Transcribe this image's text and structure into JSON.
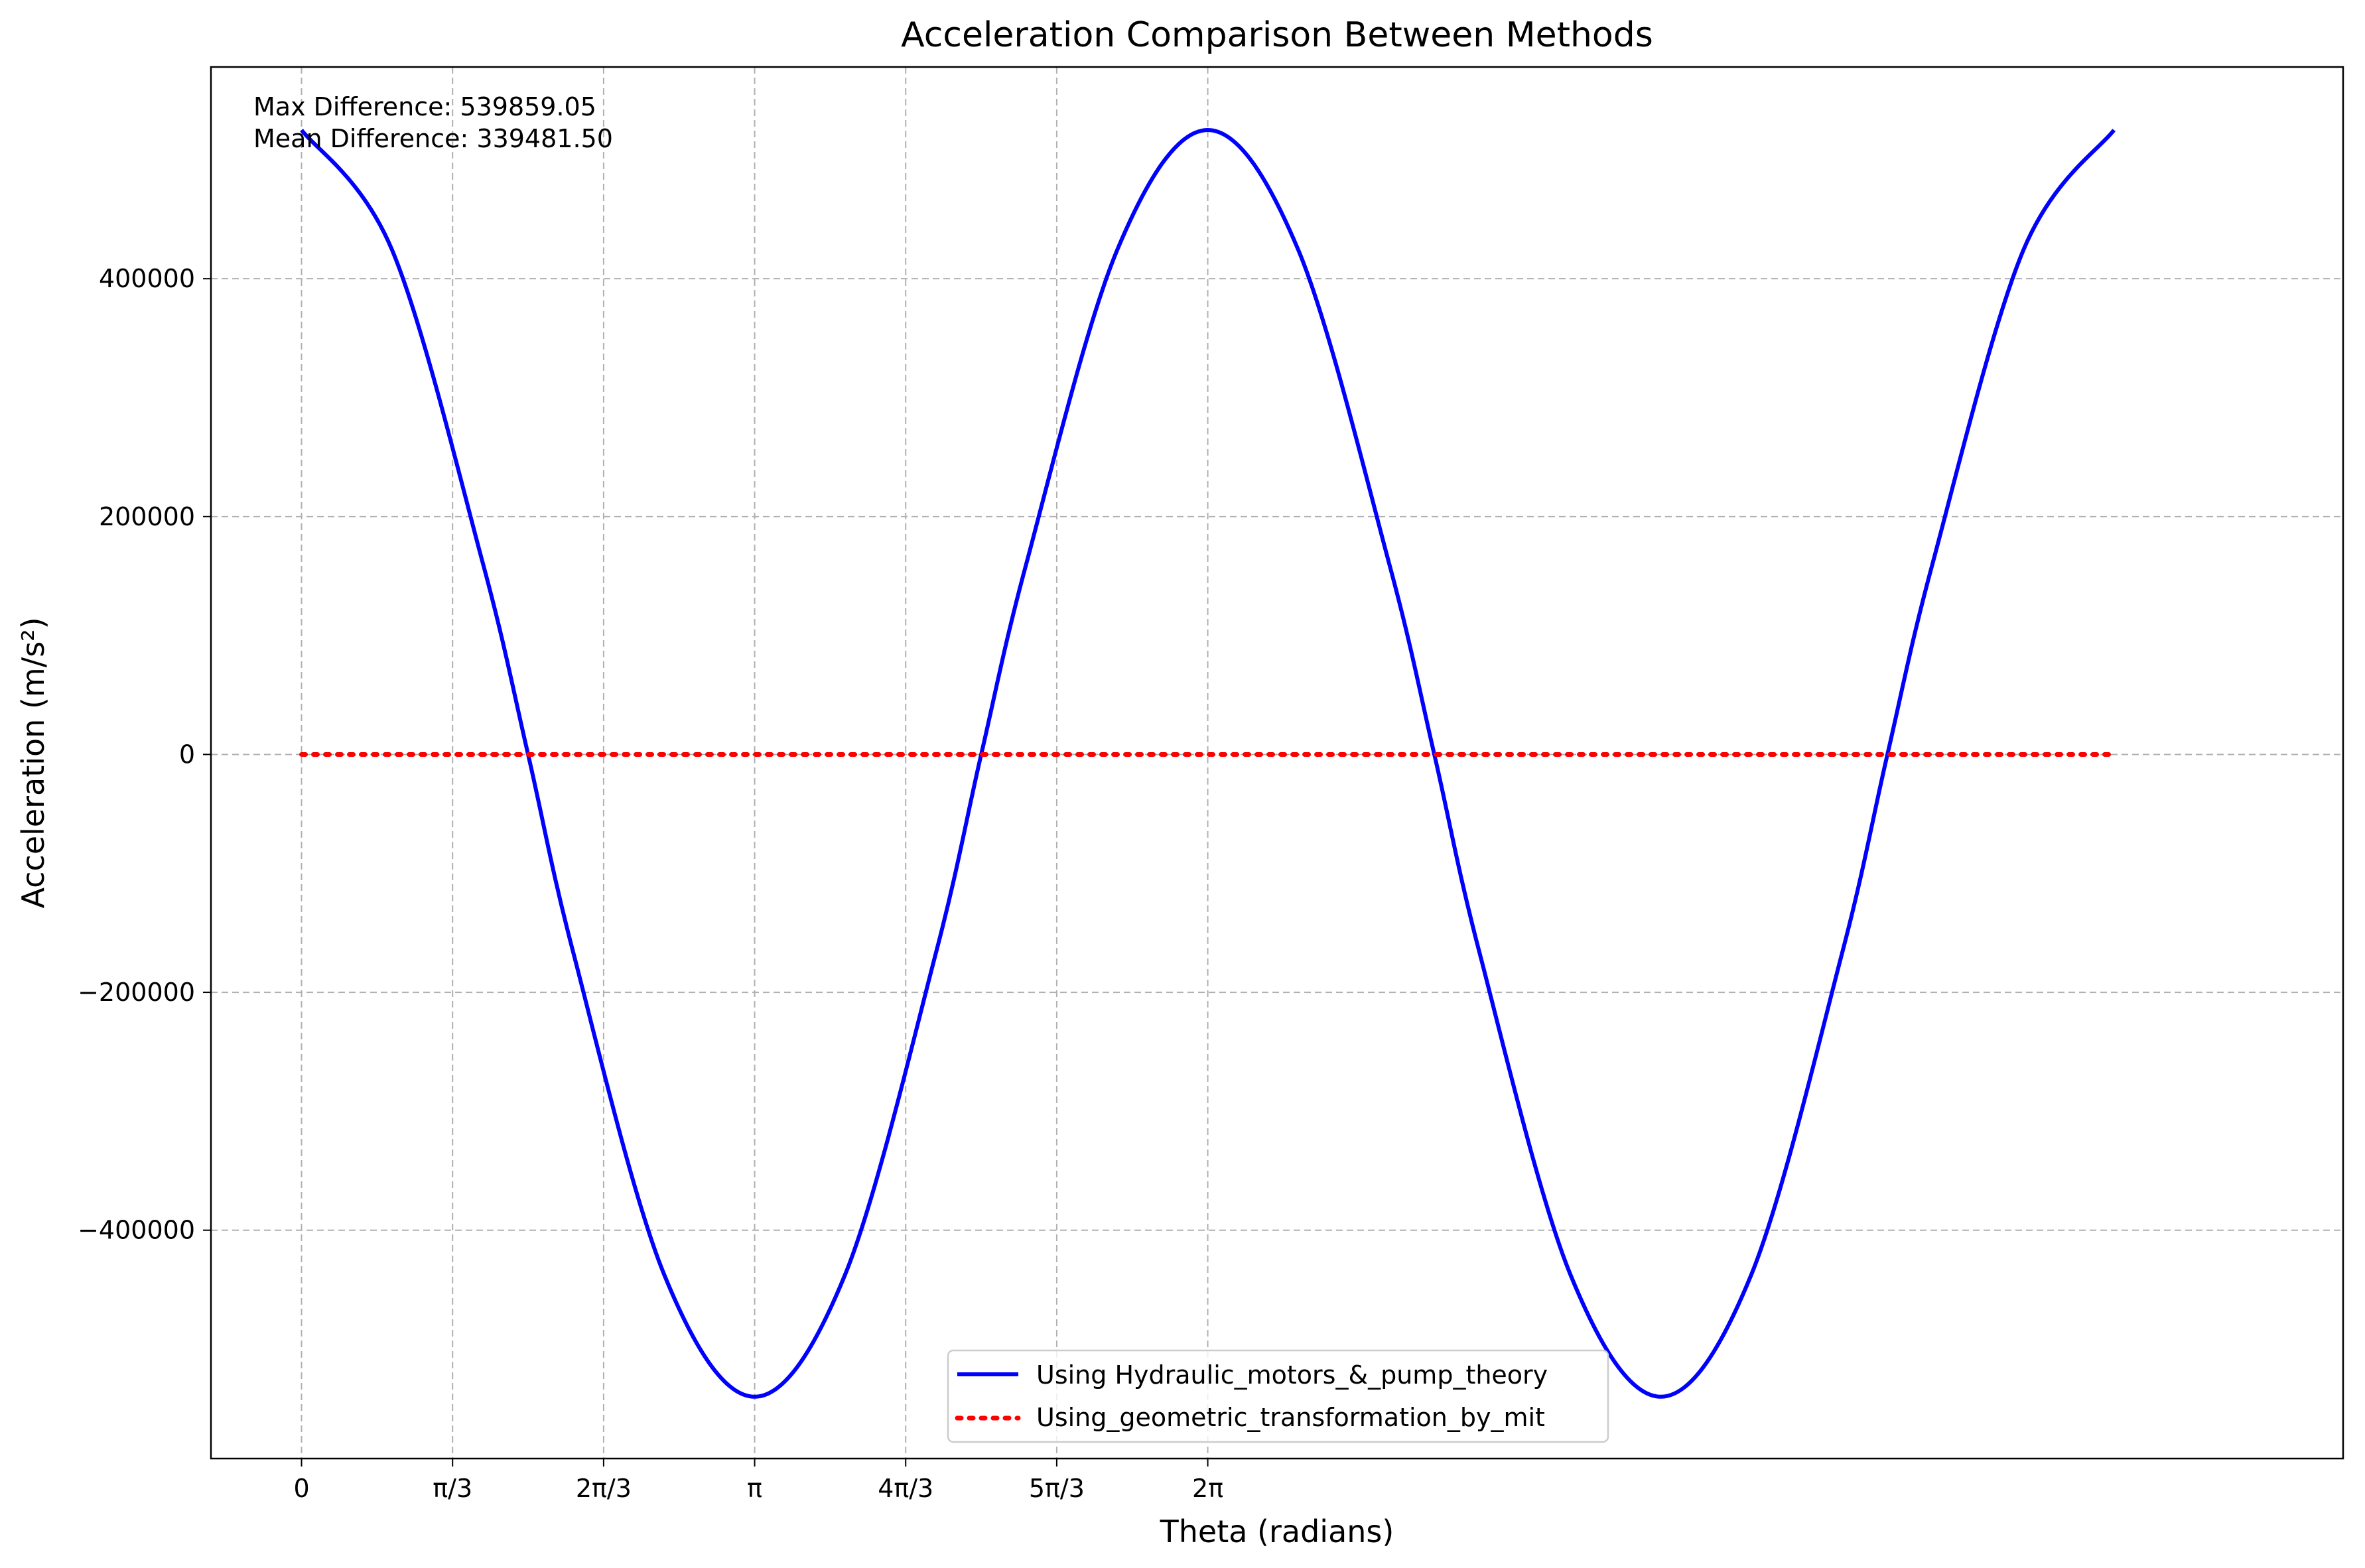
{
  "chart_data": {
    "type": "line",
    "title": "Acceleration Comparison Between Methods",
    "xlabel": "Theta (radians)",
    "ylabel": "Acceleration (m/s²)",
    "xlim": [
      -0.628,
      14.155
    ],
    "ylim": [
      -592000,
      578000
    ],
    "x_ticks": [
      {
        "value": 0,
        "label": "0"
      },
      {
        "value": 1.0472,
        "label": "π/3"
      },
      {
        "value": 2.0944,
        "label": "2π/3"
      },
      {
        "value": 3.1416,
        "label": "π"
      },
      {
        "value": 4.1888,
        "label": "4π/3"
      },
      {
        "value": 5.236,
        "label": "5π/3"
      },
      {
        "value": 6.2832,
        "label": "2π"
      }
    ],
    "y_ticks": [
      {
        "value": -400000,
        "label": "−400000"
      },
      {
        "value": -200000,
        "label": "−200000"
      },
      {
        "value": 0,
        "label": "0"
      },
      {
        "value": 200000,
        "label": "200000"
      },
      {
        "value": 400000,
        "label": "400000"
      }
    ],
    "grid": true,
    "grid_style": "dashed",
    "legend_position": "lower center",
    "series": [
      {
        "name": "Using Hydraulic_motors_&_pump_theory",
        "color": "#0000ff",
        "line_style": "solid",
        "x": [
          0,
          0.6283,
          1.2566,
          1.5708,
          1.885,
          2.5133,
          3.1416,
          3.7699,
          4.3982,
          4.7124,
          5.0265,
          5.6549,
          6.2832,
          6.9115,
          7.5398,
          7.854,
          8.1681,
          8.7965,
          9.4248,
          10.0531,
          10.6814,
          10.9956,
          11.3097,
          11.9381,
          12.5664
        ],
        "y": [
          525000,
          424000,
          161000,
          0,
          -167000,
          -437000,
          -540000,
          -437000,
          -167000,
          0,
          161000,
          424000,
          525000,
          424000,
          161000,
          0,
          -167000,
          -437000,
          -540000,
          -437000,
          -167000,
          0,
          161000,
          424000,
          525000
        ]
      },
      {
        "name": "Using_geometric_transformation_by_mit",
        "color": "#ff0000",
        "line_style": "dotted",
        "x": [
          0,
          12.5664
        ],
        "y": [
          0,
          0
        ]
      }
    ],
    "annotations": [
      "Max Difference: 539859.05",
      "Mean Difference: 339481.50"
    ]
  }
}
